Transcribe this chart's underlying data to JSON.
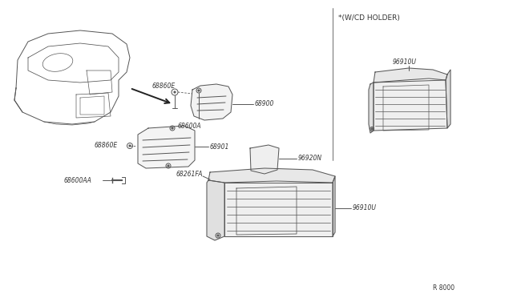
{
  "bg_color": "#ffffff",
  "lc": "#555555",
  "lc_light": "#888888",
  "ref_code": "R 8000",
  "box_label": "*(W/CD HOLDER)",
  "labels": {
    "96910U_main": "96910U",
    "96920N": "96920N",
    "68900": "68900",
    "68860E_top": "68860E",
    "68600A": "68600A",
    "68901": "68901",
    "68860E_left": "68860E",
    "68600AA": "68600AA",
    "68261FA": "68261FA",
    "96910U_box": "96910U"
  }
}
